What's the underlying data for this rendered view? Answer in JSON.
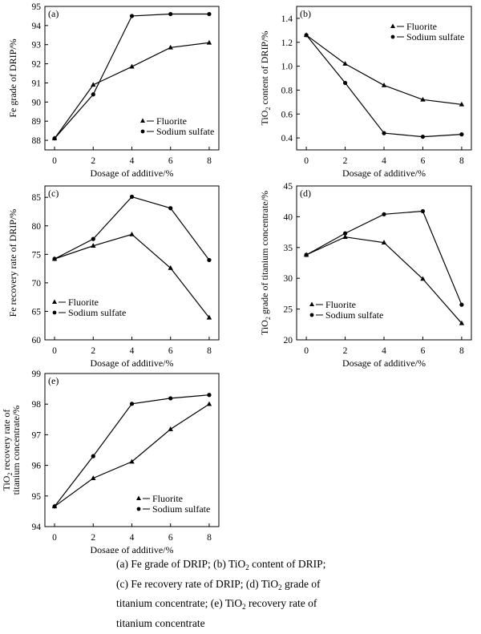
{
  "chart_data": [
    {
      "id": "a",
      "panel_label": "(a)",
      "type": "line",
      "xlabel": "Dosage of additive/%",
      "ylabel": "Fe grade of DRIP/%",
      "x": [
        0,
        2,
        4,
        6,
        8
      ],
      "xticks": [
        "0",
        "2",
        "4",
        "6",
        "8"
      ],
      "xlim": [
        -0.5,
        8.5
      ],
      "ylim": [
        87.5,
        95
      ],
      "yticks": [
        88,
        89,
        90,
        91,
        92,
        93,
        94,
        95
      ],
      "legend_position": "bottom-right",
      "series": [
        {
          "name": "Fluorite",
          "marker": "triangle",
          "values": [
            88.1,
            90.9,
            91.85,
            92.85,
            93.1
          ]
        },
        {
          "name": "Sodium sulfate",
          "marker": "circle",
          "values": [
            88.1,
            90.4,
            94.5,
            94.6,
            94.6
          ]
        }
      ]
    },
    {
      "id": "b",
      "panel_label": "(b)",
      "type": "line",
      "xlabel": "Dosage of additive/%",
      "ylabel": "TiO2 content of DRIP/%",
      "x": [
        0,
        2,
        4,
        6,
        8
      ],
      "xticks": [
        "0",
        "2",
        "4",
        "6",
        "8"
      ],
      "xlim": [
        -0.5,
        8.5
      ],
      "ylim": [
        0.3,
        1.5
      ],
      "yticks": [
        "0.4",
        "0.6",
        "0.8",
        "1.0",
        "1.2",
        "1.4"
      ],
      "legend_position": "top-right",
      "series": [
        {
          "name": "Fluorite",
          "marker": "triangle",
          "values": [
            1.26,
            1.02,
            0.84,
            0.72,
            0.68
          ]
        },
        {
          "name": "Sodium sulfate",
          "marker": "circle",
          "values": [
            1.26,
            0.86,
            0.44,
            0.41,
            0.43
          ]
        }
      ]
    },
    {
      "id": "c",
      "panel_label": "(c)",
      "type": "line",
      "xlabel": "Dosage of additive/%",
      "ylabel": "Fe recovery rate of DRIP/%",
      "x": [
        0,
        2,
        4,
        6,
        8
      ],
      "xticks": [
        "0",
        "2",
        "4",
        "6",
        "8"
      ],
      "xlim": [
        -0.5,
        8.5
      ],
      "ylim": [
        60,
        87
      ],
      "yticks": [
        60,
        65,
        70,
        75,
        80,
        85
      ],
      "legend_position": "bottom-left",
      "series": [
        {
          "name": "Fluorite",
          "marker": "triangle",
          "values": [
            74.2,
            76.5,
            78.5,
            72.6,
            63.9
          ]
        },
        {
          "name": "Sodium sulfate",
          "marker": "circle",
          "values": [
            74.2,
            77.7,
            85.1,
            83.1,
            74.0
          ]
        }
      ]
    },
    {
      "id": "d",
      "panel_label": "(d)",
      "type": "line",
      "xlabel": "Dosage of additive/%",
      "ylabel": "TiO2 grade of titanium concentrate/%",
      "x": [
        0,
        2,
        4,
        6,
        8
      ],
      "xticks": [
        "0",
        "2",
        "4",
        "6",
        "8"
      ],
      "xlim": [
        -0.5,
        8.5
      ],
      "ylim": [
        20,
        45
      ],
      "yticks": [
        20,
        25,
        30,
        35,
        40,
        45
      ],
      "legend_position": "bottom-center",
      "series": [
        {
          "name": "Fluorite",
          "marker": "triangle",
          "values": [
            33.8,
            36.7,
            35.8,
            29.9,
            22.7
          ]
        },
        {
          "name": "Sodium sulfate",
          "marker": "circle",
          "values": [
            33.8,
            37.3,
            40.4,
            40.9,
            25.7
          ]
        }
      ]
    },
    {
      "id": "e",
      "panel_label": "(e)",
      "type": "line",
      "xlabel": "Dosage of additive/%",
      "ylabel_line1": "TiO2 recovery rate of",
      "ylabel_line2": "titanium concentrate/%",
      "x": [
        0,
        2,
        4,
        6,
        8
      ],
      "xticks": [
        "0",
        "2",
        "4",
        "6",
        "8"
      ],
      "xlim": [
        -0.5,
        8.5
      ],
      "ylim": [
        94,
        99
      ],
      "yticks": [
        94,
        95,
        96,
        97,
        98,
        99
      ],
      "legend_position": "bottom-right",
      "series": [
        {
          "name": "Fluorite",
          "marker": "triangle",
          "values": [
            94.66,
            95.58,
            96.12,
            97.18,
            98.0
          ]
        },
        {
          "name": "Sodium sulfate",
          "marker": "circle",
          "values": [
            94.66,
            96.3,
            98.01,
            98.19,
            98.3
          ]
        }
      ]
    }
  ],
  "caption": {
    "l1_a": "(a) Fe grade of DRIP; (b) TiO",
    "l1_b": " content of DRIP;",
    "l2": "(c) Fe recovery rate of DRIP; (d) TiO",
    "l2_b": " grade of",
    "l3_a": "titanium concentrate; (e) TiO",
    "l3_b": " recovery rate of",
    "l4": "titanium concentrate",
    "sub": "2"
  }
}
